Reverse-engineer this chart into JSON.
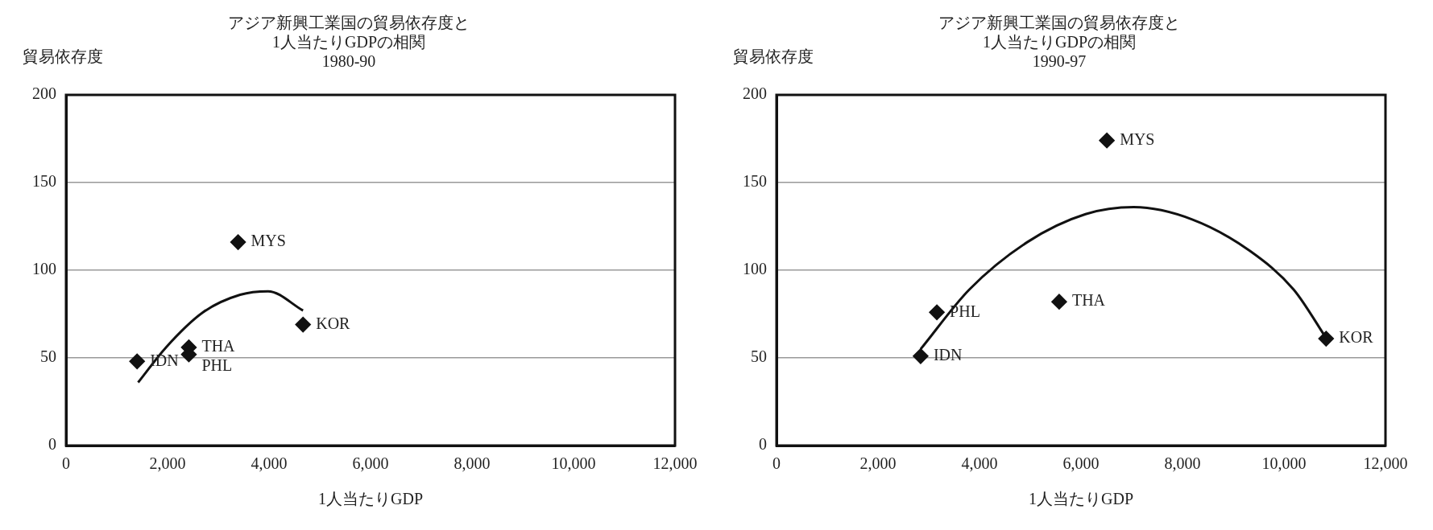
{
  "chart_data": [
    {
      "type": "scatter",
      "title": "アジア新興工業国の貿易依存度と\n1人当たりGDPの相関\n1980-90",
      "xlabel": "1人当たりGDP",
      "ylabel": "貿易依存度",
      "xlim": [
        0,
        12000
      ],
      "xticks": [
        {
          "value": 0,
          "label": "0"
        },
        {
          "value": 2000,
          "label": "2,000"
        },
        {
          "value": 4000,
          "label": "4,000"
        },
        {
          "value": 6000,
          "label": "6,000"
        },
        {
          "value": 8000,
          "label": "8,000"
        },
        {
          "value": 10000,
          "label": "10,000"
        },
        {
          "value": 12000,
          "label": "12,000"
        }
      ],
      "ylim": [
        0,
        200
      ],
      "yticks": [
        0,
        50,
        100,
        150,
        200
      ],
      "grid": "y",
      "marker": "diamond",
      "series": [
        {
          "color": "#111111",
          "x": [
            1400,
            2420,
            2420,
            3390,
            4670
          ],
          "values": [
            48,
            56,
            52,
            116,
            69
          ]
        },
        {
          "type": "line",
          "color": "#111111",
          "marker": "none",
          "x": [
            1420,
            1970,
            2700,
            3430,
            3980,
            4670
          ],
          "values": [
            36,
            56,
            76,
            86,
            88,
            77
          ]
        }
      ],
      "annotations": [
        {
          "text": "IDN",
          "x": 1400,
          "y": 48
        },
        {
          "text": "THA",
          "x": 2420,
          "y": 56
        },
        {
          "text": "PHL",
          "x": 2420,
          "y": 52
        },
        {
          "text": "MYS",
          "x": 3390,
          "y": 116
        },
        {
          "text": "KOR",
          "x": 4670,
          "y": 69
        }
      ]
    },
    {
      "type": "scatter",
      "title": "アジア新興工業国の貿易依存度と\n1人当たりGDPの相関\n1990-97",
      "xlabel": "1人当たりGDP",
      "ylabel": "貿易依存度",
      "xlim": [
        0,
        12000
      ],
      "xticks": [
        {
          "value": 0,
          "label": "0"
        },
        {
          "value": 2000,
          "label": "2,000"
        },
        {
          "value": 4000,
          "label": "4,000"
        },
        {
          "value": 6000,
          "label": "6,000"
        },
        {
          "value": 8000,
          "label": "8,000"
        },
        {
          "value": 10000,
          "label": "10,000"
        },
        {
          "value": 12000,
          "label": "12,000"
        }
      ],
      "ylim": [
        0,
        200
      ],
      "yticks": [
        0,
        50,
        100,
        150,
        200
      ],
      "grid": "y",
      "marker": "diamond",
      "series": [
        {
          "color": "#111111",
          "x": [
            2840,
            3160,
            5570,
            6510,
            10830
          ],
          "values": [
            51,
            76,
            82,
            174,
            61
          ]
        },
        {
          "type": "line",
          "color": "#111111",
          "marker": "none",
          "x": [
            2840,
            3800,
            4940,
            6090,
            7040,
            8190,
            9330,
            10190,
            10860
          ],
          "values": [
            55,
            89,
            116,
            132,
            136,
            129,
            111,
            89,
            60
          ]
        }
      ],
      "annotations": [
        {
          "text": "IDN",
          "x": 2840,
          "y": 51
        },
        {
          "text": "PHL",
          "x": 3160,
          "y": 76
        },
        {
          "text": "THA",
          "x": 5570,
          "y": 82
        },
        {
          "text": "MYS",
          "x": 6510,
          "y": 174
        },
        {
          "text": "KOR",
          "x": 10830,
          "y": 61
        }
      ]
    }
  ]
}
